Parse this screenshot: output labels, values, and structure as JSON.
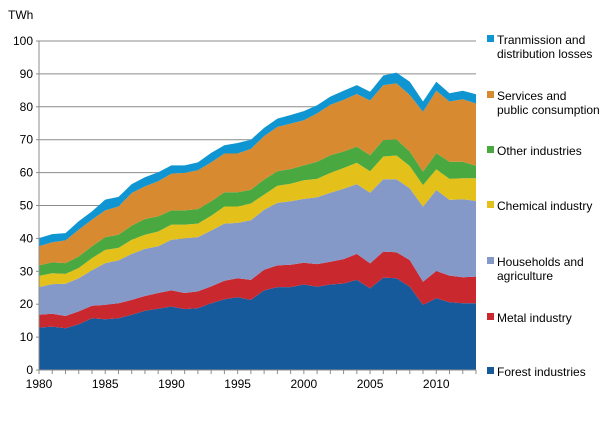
{
  "chart_data": {
    "type": "area",
    "stacked": true,
    "title": "",
    "ylabel": "TWh",
    "xlabel": "",
    "ylim": [
      0,
      100
    ],
    "yticks": [
      0,
      10,
      20,
      30,
      40,
      50,
      60,
      70,
      80,
      90,
      100
    ],
    "xticks": [
      1980,
      1985,
      1990,
      1995,
      2000,
      2005,
      2010
    ],
    "grid": true,
    "legend_position": "right",
    "x": [
      1980,
      1981,
      1982,
      1983,
      1984,
      1985,
      1986,
      1987,
      1988,
      1989,
      1990,
      1991,
      1992,
      1993,
      1994,
      1995,
      1996,
      1997,
      1998,
      1999,
      2000,
      2001,
      2002,
      2003,
      2004,
      2005,
      2006,
      2007,
      2008,
      2009,
      2010,
      2011,
      2012,
      2013
    ],
    "series": [
      {
        "name": "Forest industries",
        "color": "#175a9c",
        "values": [
          12.9,
          13.2,
          12.7,
          13.9,
          15.7,
          15.4,
          15.7,
          16.8,
          18.0,
          18.6,
          19.3,
          18.5,
          18.8,
          20.3,
          21.5,
          22.1,
          21.3,
          24.2,
          25.2,
          25.2,
          26.0,
          25.3,
          26.0,
          26.3,
          27.4,
          24.8,
          28.1,
          27.9,
          25.3,
          19.8,
          21.8,
          20.6,
          20.3,
          20.3
        ]
      },
      {
        "name": "Metal industry",
        "color": "#c8282e",
        "values": [
          3.9,
          3.9,
          3.7,
          3.9,
          3.8,
          4.4,
          4.6,
          4.5,
          4.5,
          4.8,
          4.9,
          4.9,
          5.1,
          5.1,
          5.6,
          5.8,
          6.1,
          6.3,
          6.6,
          6.8,
          6.6,
          6.9,
          6.9,
          7.4,
          7.9,
          7.6,
          7.9,
          7.9,
          8.1,
          7.0,
          8.3,
          8.1,
          7.9,
          8.1
        ]
      },
      {
        "name": "Households and agriculture",
        "color": "#8599c8",
        "values": [
          8.4,
          9.0,
          9.8,
          10.1,
          10.8,
          12.7,
          13.0,
          14.0,
          14.3,
          14.2,
          15.4,
          16.6,
          16.5,
          17.0,
          17.4,
          16.8,
          18.1,
          18.2,
          19.0,
          19.3,
          19.4,
          20.3,
          21.0,
          21.4,
          21.2,
          21.5,
          22.0,
          22.2,
          21.8,
          22.8,
          24.6,
          23.0,
          23.7,
          23.0
        ]
      },
      {
        "name": "Chemical industry",
        "color": "#e3c11a",
        "values": [
          3.4,
          3.3,
          3.0,
          3.1,
          3.7,
          4.0,
          3.8,
          4.3,
          4.3,
          4.5,
          4.6,
          4.2,
          4.1,
          4.5,
          5.2,
          5.0,
          5.1,
          4.6,
          5.2,
          5.3,
          5.7,
          5.6,
          6.0,
          6.3,
          6.5,
          6.5,
          6.9,
          7.2,
          6.8,
          6.6,
          6.3,
          6.4,
          6.4,
          6.9
        ]
      },
      {
        "name": "Other industries",
        "color": "#4aa840",
        "values": [
          3.2,
          3.3,
          3.3,
          3.5,
          3.6,
          3.9,
          4.0,
          4.3,
          4.8,
          4.6,
          4.3,
          4.3,
          4.4,
          4.4,
          4.3,
          4.3,
          4.2,
          4.6,
          4.4,
          4.5,
          4.5,
          5.2,
          5.4,
          5.0,
          4.9,
          4.9,
          5.0,
          4.9,
          4.4,
          4.1,
          4.9,
          5.2,
          5.0,
          3.8
        ]
      },
      {
        "name": "Services and public consumption",
        "color": "#d88a30",
        "values": [
          5.8,
          6.1,
          6.9,
          8.1,
          8.1,
          8.1,
          8.6,
          9.9,
          9.9,
          10.7,
          11.2,
          11.4,
          11.8,
          11.8,
          11.8,
          11.8,
          12.4,
          13.2,
          13.5,
          13.8,
          13.7,
          14.7,
          15.3,
          15.7,
          16.0,
          16.6,
          16.7,
          17.0,
          17.2,
          18.2,
          19.0,
          18.3,
          19.0,
          18.9
        ]
      },
      {
        "name": "Tranmission and distribution losses",
        "color": "#0f96d2",
        "values": [
          2.5,
          2.5,
          2.2,
          2.6,
          2.5,
          3.3,
          2.9,
          2.7,
          2.8,
          2.7,
          2.5,
          2.3,
          2.4,
          2.9,
          2.5,
          3.2,
          2.8,
          2.5,
          2.5,
          2.6,
          2.8,
          2.5,
          2.5,
          2.8,
          2.7,
          2.7,
          2.9,
          3.3,
          4.0,
          3.1,
          2.7,
          2.5,
          2.6,
          2.8
        ]
      }
    ],
    "legend": [
      {
        "lines": [
          "Tranmission and",
          "distribution losses"
        ],
        "color": "#0f96d2"
      },
      {
        "lines": [
          "Services and",
          "public consumption"
        ],
        "color": "#d88a30"
      },
      {
        "lines": [
          "Other industries"
        ],
        "color": "#4aa840"
      },
      {
        "lines": [
          "Chemical industry"
        ],
        "color": "#e3c11a"
      },
      {
        "lines": [
          "Households and",
          "agriculture"
        ],
        "color": "#8599c8"
      },
      {
        "lines": [
          "Metal industry"
        ],
        "color": "#c8282e"
      },
      {
        "lines": [
          "Forest industries"
        ],
        "color": "#175a9c"
      }
    ]
  }
}
